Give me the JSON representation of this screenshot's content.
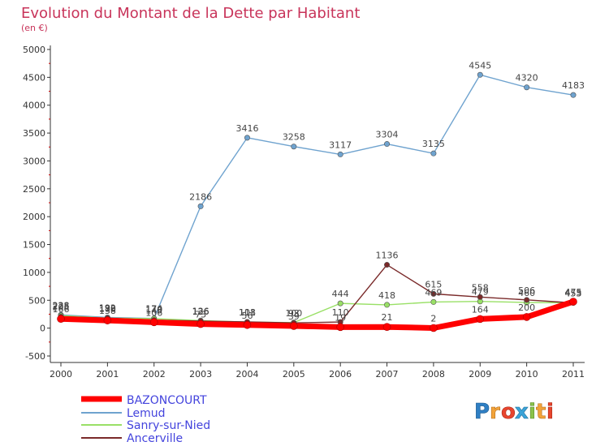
{
  "chart_data": {
    "type": "line",
    "title": "Evolution du Montant de la Dette par Habitant",
    "subtitle": "(en €)",
    "x": [
      "2000",
      "2001",
      "2002",
      "2003",
      "2004",
      "2005",
      "2006",
      "2007",
      "2008",
      "2009",
      "2010",
      "2011"
    ],
    "y_ticks": [
      "-500",
      "0",
      "500",
      "1000",
      "1500",
      "2000",
      "2500",
      "3000",
      "3500",
      "4000",
      "4500",
      "5000"
    ],
    "ylim": [
      -500,
      5000
    ],
    "grid": false,
    "legend": "bottom-left",
    "series": [
      {
        "name": "BAZONCOURT",
        "color": "#ff0000",
        "values": [
          166,
          138,
          106,
          73,
          56,
          39,
          19,
          21,
          2,
          164,
          200,
          475
        ],
        "labels": [
          "166",
          "138",
          "106",
          "73",
          "56",
          "39",
          "19",
          "21",
          "2",
          "164",
          "200",
          "475"
        ]
      },
      {
        "name": "Lemud",
        "color": "#6fa3cf",
        "values": [
          238,
          192,
          174,
          2186,
          3416,
          3258,
          3117,
          3304,
          3135,
          4545,
          4320,
          4183
        ],
        "labels": [
          "238",
          "192",
          "174",
          "2186",
          "3416",
          "3258",
          "3117",
          "3304",
          "3135",
          "4545",
          "4320",
          "4183"
        ]
      },
      {
        "name": "Sanry-sur-Nied",
        "color": "#99e066",
        "values": [
          225,
          180,
          170,
          136,
          108,
          100,
          444,
          418,
          469,
          479,
          460,
          455
        ],
        "labels": [
          "225",
          "180",
          "170",
          "136",
          "108",
          "100",
          "444",
          "418",
          "469",
          "479",
          "460",
          "455"
        ]
      },
      {
        "name": "Ancerville",
        "color": "#7a2a2a",
        "values": [
          205,
          178,
          145,
          126,
          111,
          93,
          110,
          1136,
          615,
          558,
          506,
          453
        ],
        "labels": [
          "205",
          "178",
          "145",
          "126",
          "111",
          "93",
          "110",
          "1136",
          "615",
          "558",
          "506",
          "453"
        ]
      }
    ]
  },
  "watermark": "Proxiti"
}
